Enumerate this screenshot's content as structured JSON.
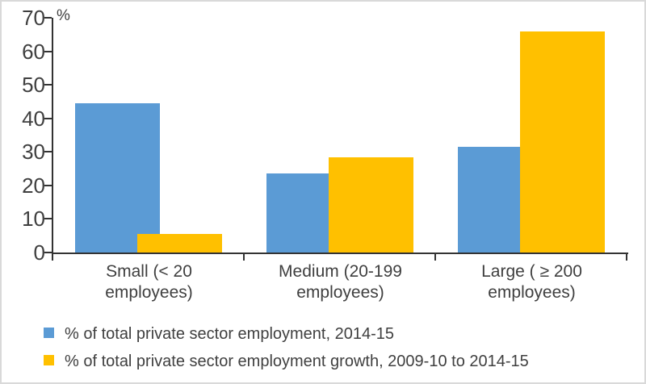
{
  "frame": {
    "background": "#ffffff",
    "border_color": "#d9d9d9",
    "axis_color": "#333333",
    "text_color": "#3f3f3f"
  },
  "chart_data": {
    "type": "bar",
    "title": "",
    "unit_label": "%",
    "categories": [
      "Small (< 20\nemployees)",
      "Medium (20-199\nemployees)",
      "Large ( ≥ 200\nemployees)"
    ],
    "series": [
      {
        "name": "% of total private sector employment, 2014-15",
        "color": "#5B9BD5",
        "values": [
          44.5,
          23.5,
          31.5
        ]
      },
      {
        "name": "% of total private sector employment growth, 2009-10 to 2014-15",
        "color": "#FFC000",
        "values": [
          5.5,
          28.5,
          66
        ]
      }
    ],
    "y_axis": {
      "min": 0,
      "max": 70,
      "tick_interval": 10,
      "tick_labels": [
        "0",
        "10",
        "20",
        "30",
        "40",
        "50",
        "60",
        "70"
      ]
    },
    "legend_position": "bottom-left",
    "grid": false,
    "bar_overlap_pct": 25,
    "series_on_top": "second"
  }
}
